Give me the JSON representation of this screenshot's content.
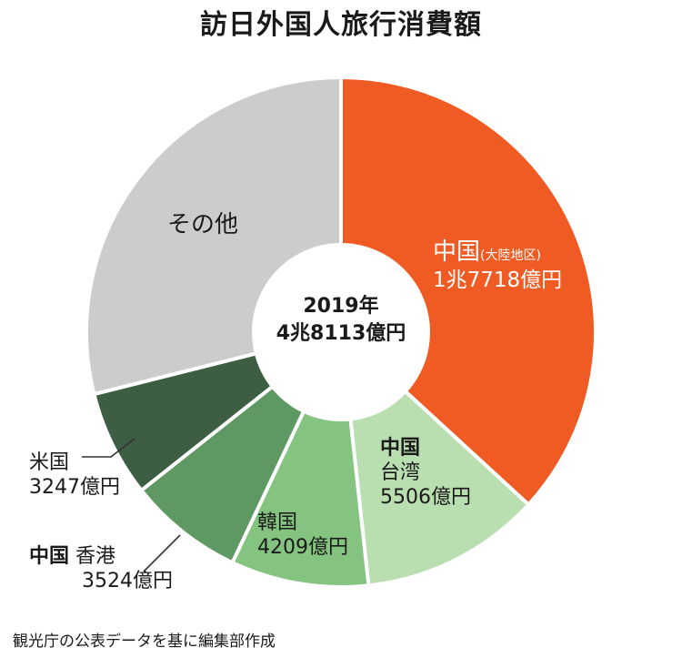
{
  "title": "訪日外国人旅行消費額",
  "center": {
    "year": "2019年",
    "total": "4兆8113億円"
  },
  "source": "観光庁の公表データを基に編集部作成",
  "chart_data": {
    "type": "pie",
    "variant": "donut",
    "unit": "億円",
    "total": 48113,
    "slices": [
      {
        "label": "中国",
        "sublabel": "(大陸地区)",
        "value_text": "1兆7718億円",
        "value": 17718,
        "color": "#f05a23"
      },
      {
        "label_bold": "中国",
        "label": "台湾",
        "value_text": "5506億円",
        "value": 5506,
        "color": "#b9deb0"
      },
      {
        "label": "韓国",
        "value_text": "4209億円",
        "value": 4209,
        "color": "#84c480"
      },
      {
        "label_bold": "中国",
        "label": "香港",
        "value_text": "3524億円",
        "value": 3524,
        "color": "#5e9862"
      },
      {
        "label": "米国",
        "value_text": "3247億円",
        "value": 3247,
        "color": "#3d5e43"
      },
      {
        "label": "その他",
        "value": 13909,
        "color": "#cccccc"
      }
    ]
  }
}
